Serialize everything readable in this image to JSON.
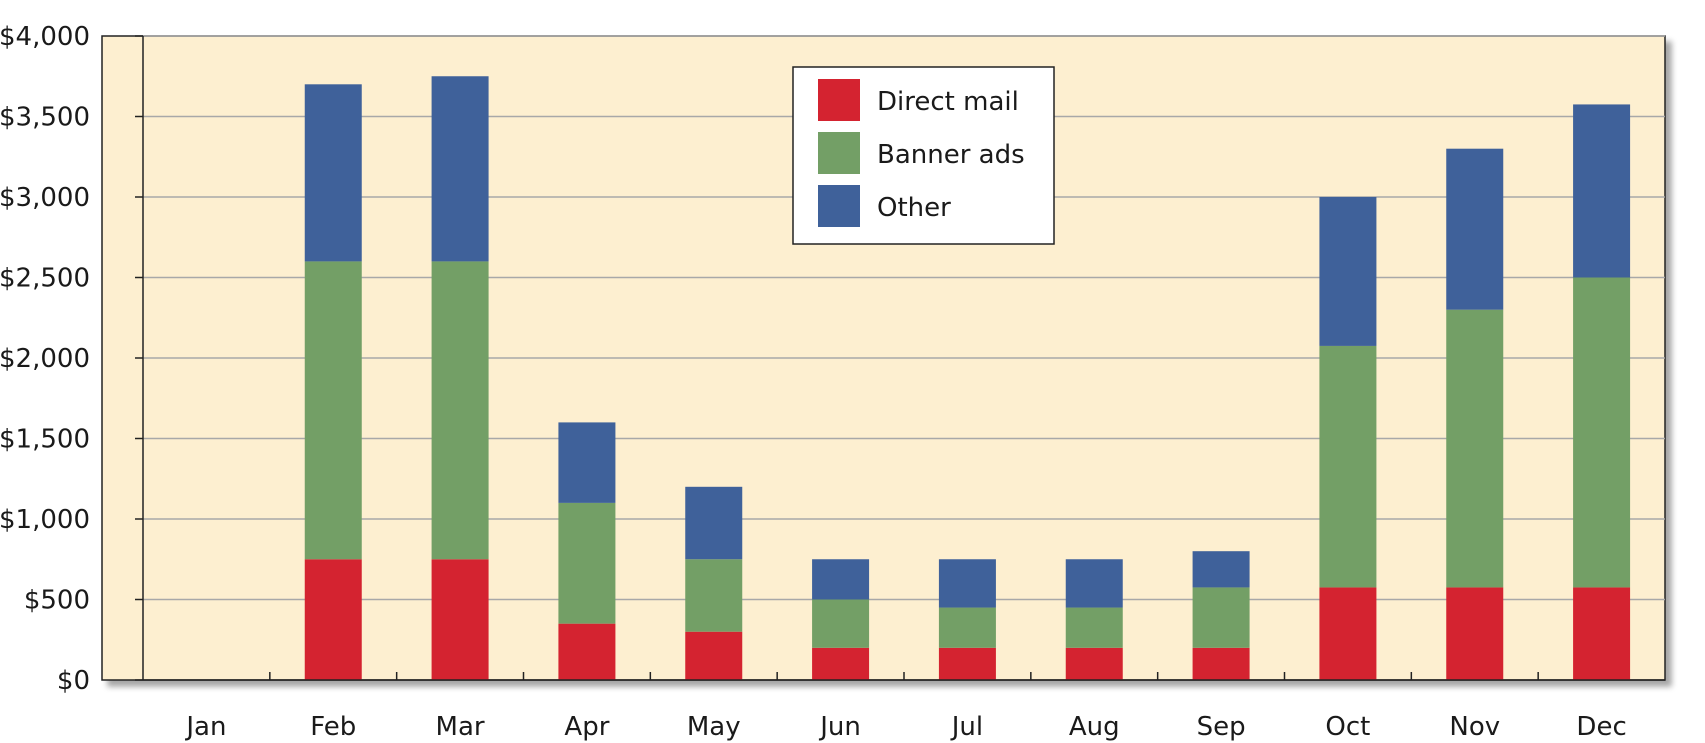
{
  "chart_data": {
    "type": "bar",
    "stacked": true,
    "title": "",
    "xlabel": "",
    "ylabel": "",
    "categories": [
      "Jan",
      "Feb",
      "Mar",
      "Apr",
      "May",
      "Jun",
      "Jul",
      "Aug",
      "Sep",
      "Oct",
      "Nov",
      "Dec"
    ],
    "ylim": [
      0,
      4000
    ],
    "y_ticks": [
      0,
      500,
      1000,
      1500,
      2000,
      2500,
      3000,
      3500,
      4000
    ],
    "y_tick_labels": [
      "$0",
      "$500",
      "$1,000",
      "$1,500",
      "$2,000",
      "$2,500",
      "$3,000",
      "$3,500",
      "$4,000"
    ],
    "grid": true,
    "legend_position": "top-center",
    "background_color": "#fdefd0",
    "series": [
      {
        "name": "Direct mail",
        "color": "#d42330",
        "values": [
          0,
          750,
          750,
          350,
          300,
          200,
          200,
          200,
          200,
          575,
          575,
          575
        ]
      },
      {
        "name": "Banner ads",
        "color": "#739f66",
        "values": [
          0,
          1850,
          1850,
          750,
          450,
          300,
          250,
          250,
          375,
          1500,
          1725,
          1925
        ]
      },
      {
        "name": "Other",
        "color": "#3f619a",
        "values": [
          0,
          1100,
          1150,
          500,
          450,
          250,
          300,
          300,
          225,
          925,
          1000,
          1075
        ]
      }
    ]
  }
}
